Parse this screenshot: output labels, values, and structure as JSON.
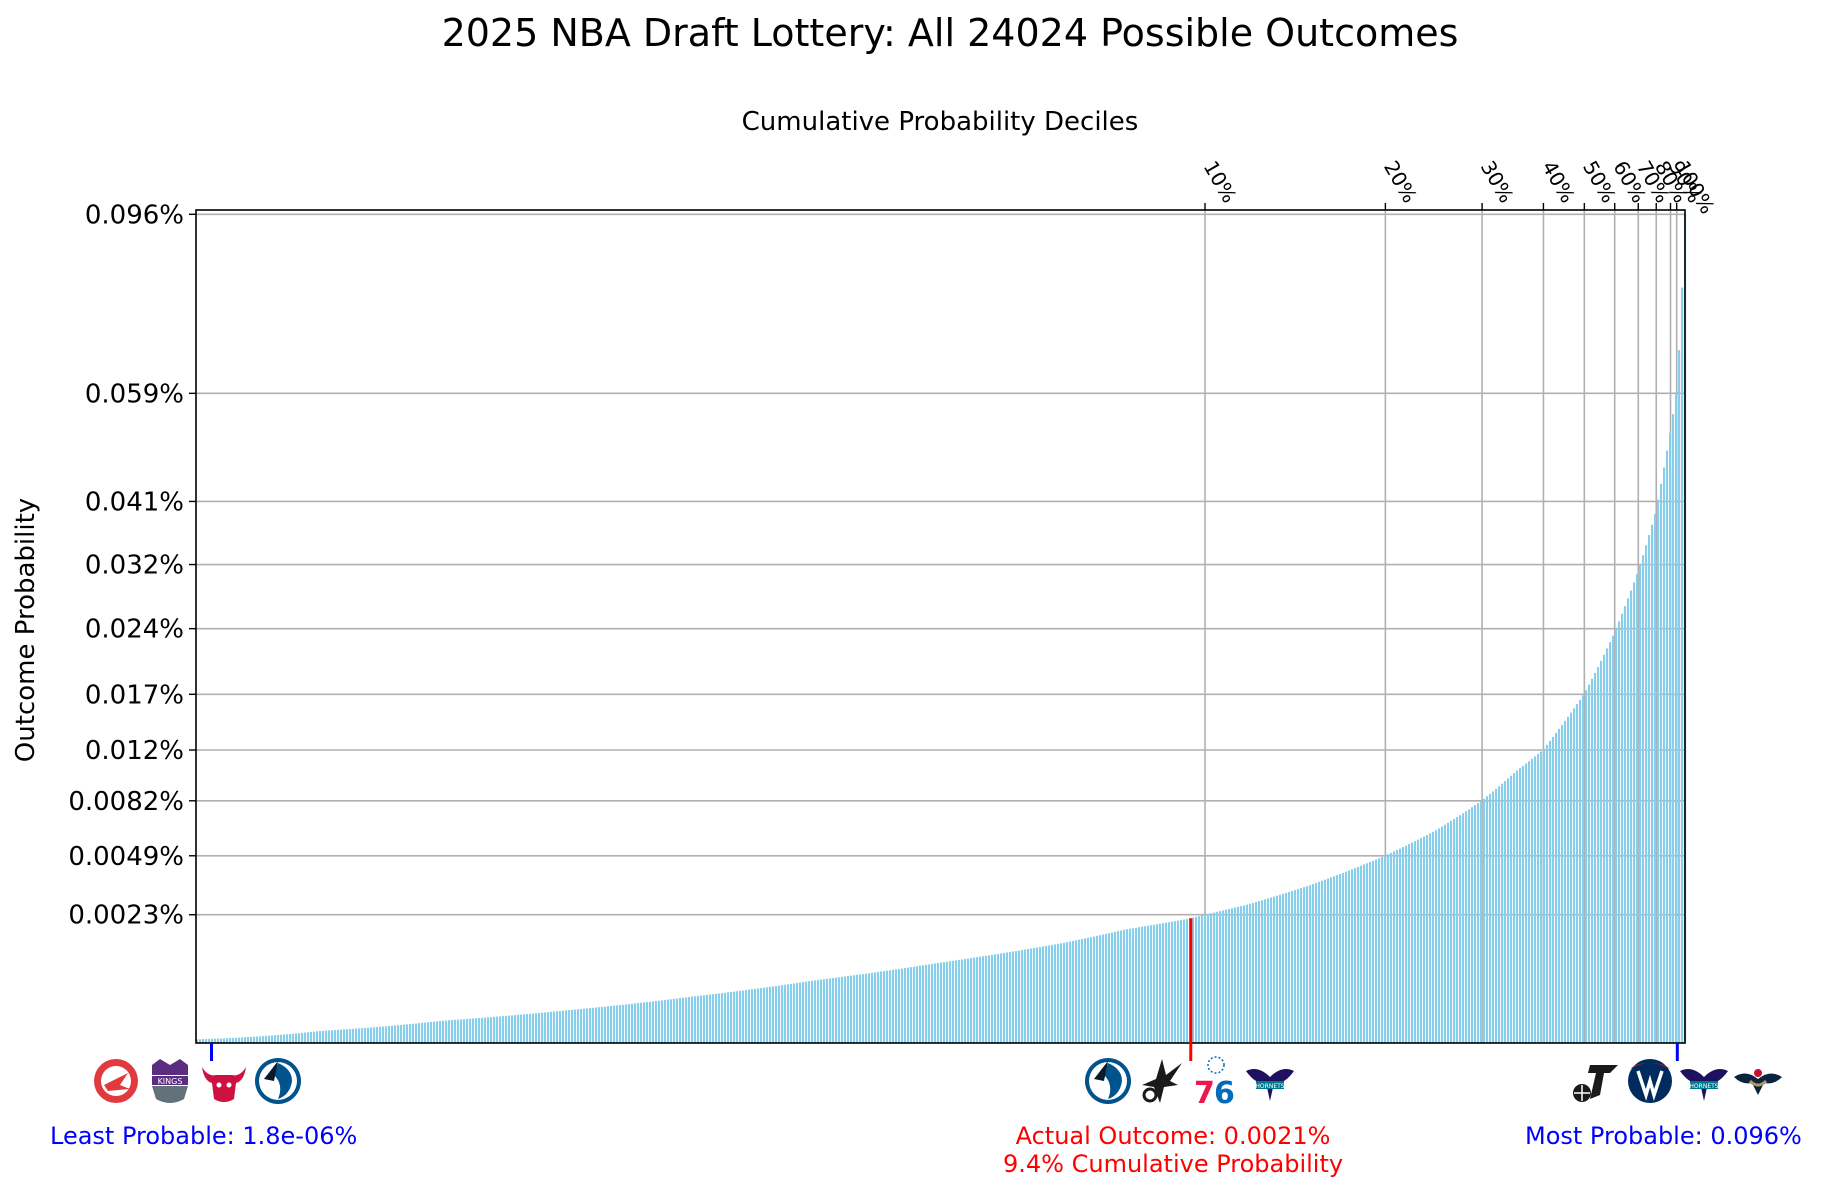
{
  "chart_data": {
    "type": "bar",
    "title": "2025 NBA Draft Lottery: All 24024 Possible Outcomes",
    "top_axis_label": "Cumulative Probability Deciles",
    "ylabel": "Outcome Probability",
    "xlabel": "",
    "y_scale": "sqrt",
    "y_tick_labels": [
      "0.0023%",
      "0.0049%",
      "0.0082%",
      "0.012%",
      "0.017%",
      "0.024%",
      "0.032%",
      "0.041%",
      "0.059%",
      "0.096%"
    ],
    "y_tick_values": [
      0.0023,
      0.0049,
      0.0082,
      0.012,
      0.017,
      0.024,
      0.032,
      0.041,
      0.059,
      0.096
    ],
    "ylim": [
      0,
      0.097
    ],
    "xlim": [
      0,
      24024
    ],
    "n_outcomes": 24024,
    "grid": true,
    "bar_color": "#87ceeb",
    "decile_labels": [
      "10%",
      "20%",
      "30%",
      "40%",
      "50%",
      "60%",
      "70%",
      "80%",
      "90%",
      "100%"
    ],
    "decile_ranks": [
      16280,
      19190,
      20750,
      21740,
      22400,
      22890,
      23270,
      23560,
      23790,
      23890
    ],
    "sorted_curve": [
      {
        "rank": 0,
        "prob": 1.8e-06
      },
      {
        "rank": 2000,
        "prob": 2e-05
      },
      {
        "rank": 4000,
        "prob": 7e-05
      },
      {
        "rank": 6000,
        "prob": 0.00015
      },
      {
        "rank": 8000,
        "prob": 0.0003
      },
      {
        "rank": 10000,
        "prob": 0.00055
      },
      {
        "rank": 12000,
        "prob": 0.0009
      },
      {
        "rank": 14000,
        "prob": 0.0014
      },
      {
        "rank": 15000,
        "prob": 0.0018
      },
      {
        "rank": 16000,
        "prob": 0.00215
      },
      {
        "rank": 16280,
        "prob": 0.0023
      },
      {
        "rank": 17000,
        "prob": 0.0027
      },
      {
        "rank": 18000,
        "prob": 0.0035
      },
      {
        "rank": 19190,
        "prob": 0.0049
      },
      {
        "rank": 20000,
        "prob": 0.0063
      },
      {
        "rank": 20750,
        "prob": 0.0082
      },
      {
        "rank": 21300,
        "prob": 0.0103
      },
      {
        "rank": 21740,
        "prob": 0.012
      },
      {
        "rank": 22000,
        "prob": 0.0138
      },
      {
        "rank": 22400,
        "prob": 0.017
      },
      {
        "rank": 22890,
        "prob": 0.0235
      },
      {
        "rank": 23270,
        "prob": 0.031
      },
      {
        "rank": 23560,
        "prob": 0.0395
      },
      {
        "rank": 23790,
        "prob": 0.052
      },
      {
        "rank": 23890,
        "prob": 0.059
      },
      {
        "rank": 23950,
        "prob": 0.07
      },
      {
        "rank": 24000,
        "prob": 0.085
      },
      {
        "rank": 24023,
        "prob": 0.096
      }
    ],
    "markers": [
      {
        "id": "least",
        "rank": 250,
        "color": "#0000ff",
        "label": "Least Probable: 1.8e-06%",
        "label2": "",
        "teams": [
          "atlanta-hawks",
          "sacramento-kings",
          "chicago-bulls",
          "dallas-mavericks"
        ]
      },
      {
        "id": "actual",
        "rank": 16050,
        "color": "#ff0000",
        "label": "Actual Outcome: 0.0021%",
        "label2": "9.4% Cumulative Probability",
        "teams": [
          "dallas-mavericks",
          "san-antonio-spurs",
          "philadelphia-76ers",
          "charlotte-hornets"
        ]
      },
      {
        "id": "most",
        "rank": 23900,
        "color": "#0000ff",
        "label": "Most Probable: 0.096%",
        "label2": "",
        "teams": [
          "utah-jazz",
          "washington-wizards",
          "charlotte-hornets",
          "new-orleans-pelicans"
        ]
      }
    ],
    "team_colors": {
      "atlanta-hawks": "#e03a3e",
      "sacramento-kings": "#5a2d81",
      "chicago-bulls": "#ce1141",
      "dallas-mavericks": "#00538c",
      "san-antonio-spurs": "#1a1a1a",
      "philadelphia-76ers": "#ed174c",
      "charlotte-hornets": "#1d1160",
      "utah-jazz": "#1a1a1a",
      "washington-wizards": "#002b5c",
      "new-orleans-pelicans": "#0c2340"
    }
  }
}
